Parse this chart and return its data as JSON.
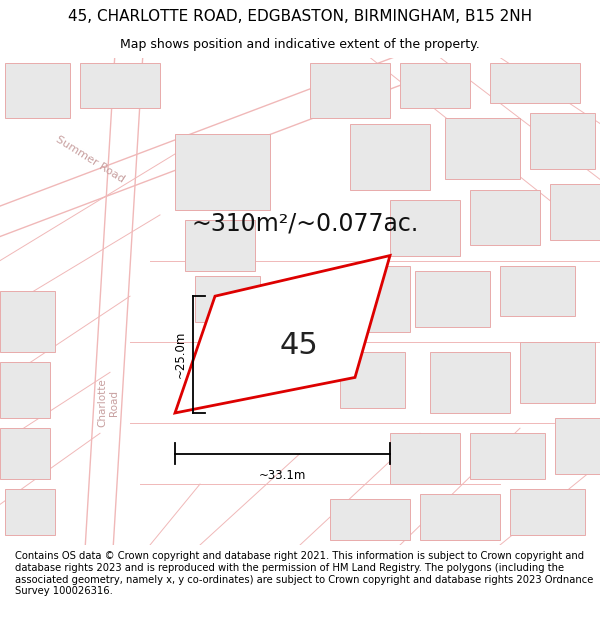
{
  "title": "45, CHARLOTTE ROAD, EDGBASTON, BIRMINGHAM, B15 2NH",
  "subtitle": "Map shows position and indicative extent of the property.",
  "area_text": "~310m²/~0.077ac.",
  "number_label": "45",
  "dim_horizontal": "~33.1m",
  "dim_vertical": "~25.0m",
  "footer": "Contains OS data © Crown copyright and database right 2021. This information is subject to Crown copyright and database rights 2023 and is reproduced with the permission of HM Land Registry. The polygons (including the associated geometry, namely x, y co-ordinates) are subject to Crown copyright and database rights 2023 Ordnance Survey 100026316.",
  "map_bg": "#f7f4f2",
  "bld_fill": "#e8e8e8",
  "bld_edge": "#e8aaaa",
  "road_line": "#f0b8b8",
  "plot_fill": "#ffffff",
  "plot_edge": "#dd0000",
  "label_color": "#c8a0a0",
  "title_fontsize": 11,
  "subtitle_fontsize": 9,
  "footer_fontsize": 7.2,
  "area_fontsize": 17,
  "number_fontsize": 22
}
